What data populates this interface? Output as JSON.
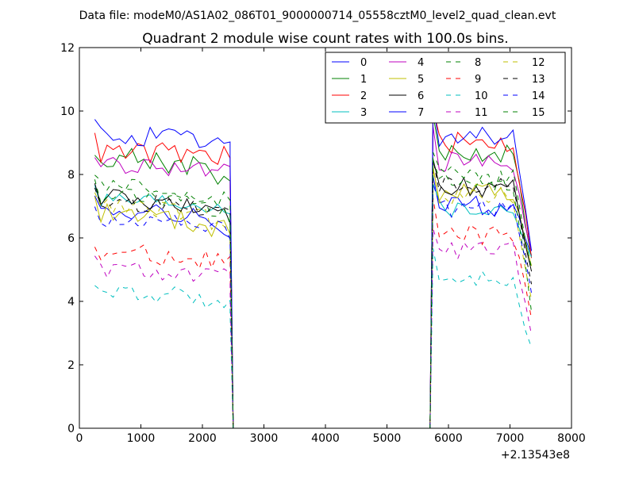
{
  "header": {
    "data_file": "Data file: modeM0/AS1A02_086T01_9000000714_05558cztM0_level2_quad_clean.evt"
  },
  "chart_data": {
    "type": "line",
    "title": "Quadrant 2 module wise count rates with 100.0s bins.",
    "xlabel": "",
    "ylabel": "",
    "x_offset_label": "+2.13543e8",
    "xlim": [
      0,
      8000
    ],
    "ylim": [
      0,
      12
    ],
    "x_ticks": [
      0,
      1000,
      2000,
      3000,
      4000,
      5000,
      6000,
      7000,
      8000
    ],
    "y_ticks": [
      0,
      2,
      4,
      6,
      8,
      10,
      12
    ],
    "x_tick_labels": [
      "0",
      "1000",
      "2000",
      "3000",
      "4000",
      "5000",
      "6000",
      "7000",
      "8000"
    ],
    "y_tick_labels": [
      "0",
      "2",
      "4",
      "6",
      "8",
      "10",
      "12"
    ],
    "grid": false,
    "legend_position": "top-right",
    "segment1": {
      "x_start": 250,
      "step": 100,
      "count": 23,
      "drop_x": [
        2450,
        2500
      ]
    },
    "zero_span": {
      "x_start": 2500,
      "x_end": 5700
    },
    "segment2": {
      "rise_x": [
        5700,
        5750
      ],
      "x_start": 5750,
      "step": 100,
      "count": 17
    },
    "series": [
      {
        "name": "0",
        "color": "#0000ff",
        "dashed": false,
        "seg1_mean": 6.9,
        "seg1_end": 6.3,
        "seg2_mean": 7.0,
        "seg2_end": 5.4,
        "noise": 0.35
      },
      {
        "name": "1",
        "color": "#008000",
        "dashed": false,
        "seg1_mean": 8.6,
        "seg1_end": 7.9,
        "seg2_mean": 8.7,
        "seg2_end": 5.5,
        "noise": 0.35
      },
      {
        "name": "2",
        "color": "#ff0000",
        "dashed": false,
        "seg1_mean": 8.7,
        "seg1_end": 8.6,
        "seg2_mean": 9.0,
        "seg2_end": 5.5,
        "noise": 0.35
      },
      {
        "name": "3",
        "color": "#00bfbf",
        "dashed": false,
        "seg1_mean": 7.2,
        "seg1_end": 7.0,
        "seg2_mean": 6.9,
        "seg2_end": 5.4,
        "noise": 0.3
      },
      {
        "name": "4",
        "color": "#bf00bf",
        "dashed": false,
        "seg1_mean": 8.3,
        "seg1_end": 8.0,
        "seg2_mean": 8.4,
        "seg2_end": 5.5,
        "noise": 0.3
      },
      {
        "name": "5",
        "color": "#bfbf00",
        "dashed": false,
        "seg1_mean": 6.8,
        "seg1_end": 6.2,
        "seg2_mean": 7.5,
        "seg2_end": 5.2,
        "noise": 0.35
      },
      {
        "name": "6",
        "color": "#000000",
        "dashed": false,
        "seg1_mean": 7.3,
        "seg1_end": 6.6,
        "seg2_mean": 7.6,
        "seg2_end": 4.8,
        "noise": 0.3
      },
      {
        "name": "7",
        "color": "#0000ff",
        "dashed": false,
        "seg1_mean": 9.2,
        "seg1_end": 8.9,
        "seg2_mean": 9.2,
        "seg2_end": 5.6,
        "noise": 0.35
      },
      {
        "name": "8",
        "color": "#008000",
        "dashed": true,
        "seg1_mean": 7.4,
        "seg1_end": 6.6,
        "seg2_mean": 7.8,
        "seg2_end": 3.7,
        "noise": 0.3
      },
      {
        "name": "9",
        "color": "#ff0000",
        "dashed": true,
        "seg1_mean": 5.5,
        "seg1_end": 5.3,
        "seg2_mean": 6.1,
        "seg2_end": 3.6,
        "noise": 0.35
      },
      {
        "name": "10",
        "color": "#00bfbf",
        "dashed": true,
        "seg1_mean": 4.3,
        "seg1_end": 4.0,
        "seg2_mean": 4.7,
        "seg2_end": 2.4,
        "noise": 0.3
      },
      {
        "name": "11",
        "color": "#bf00bf",
        "dashed": true,
        "seg1_mean": 5.0,
        "seg1_end": 4.7,
        "seg2_mean": 5.6,
        "seg2_end": 3.0,
        "noise": 0.3
      },
      {
        "name": "12",
        "color": "#bfbf00",
        "dashed": true,
        "seg1_mean": 7.0,
        "seg1_end": 6.4,
        "seg2_mean": 7.3,
        "seg2_end": 4.0,
        "noise": 0.3
      },
      {
        "name": "13",
        "color": "#000000",
        "dashed": true,
        "seg1_mean": 7.1,
        "seg1_end": 6.9,
        "seg2_mean": 7.7,
        "seg2_end": 4.6,
        "noise": 0.3
      },
      {
        "name": "14",
        "color": "#0000ff",
        "dashed": true,
        "seg1_mean": 6.6,
        "seg1_end": 6.2,
        "seg2_mean": 6.9,
        "seg2_end": 4.4,
        "noise": 0.3
      },
      {
        "name": "15",
        "color": "#008000",
        "dashed": true,
        "seg1_mean": 7.6,
        "seg1_end": 7.2,
        "seg2_mean": 8.0,
        "seg2_end": 5.0,
        "noise": 0.3
      }
    ]
  }
}
